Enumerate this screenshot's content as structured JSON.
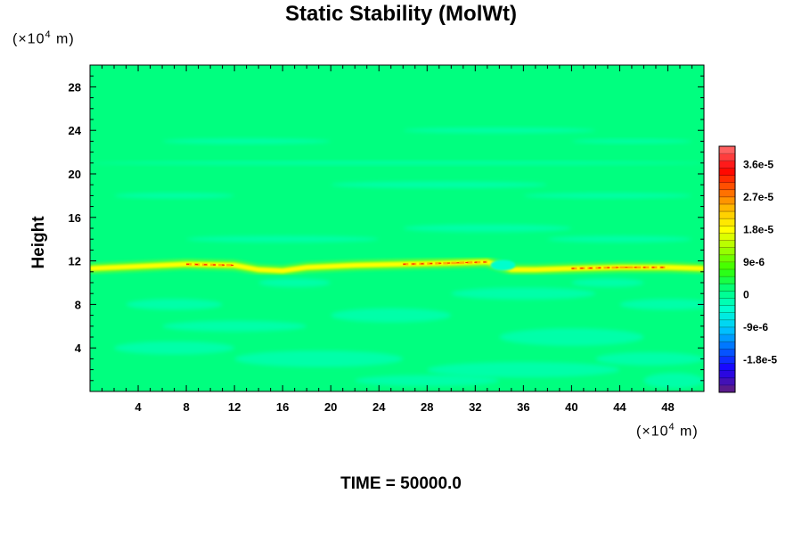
{
  "chart_data": {
    "type": "heatmap",
    "title": "Static Stability (MolWt)",
    "xlabel": "",
    "ylabel": "Height",
    "x_multiplier": {
      "prefix": "(×10",
      "exponent": "4",
      "unit": " m)"
    },
    "y_multiplier": {
      "prefix": "(×10",
      "exponent": "4",
      "unit": " m)"
    },
    "xlim": [
      0,
      51
    ],
    "ylim": [
      0,
      30
    ],
    "x_ticks": [
      "4",
      "8",
      "12",
      "16",
      "20",
      "24",
      "28",
      "32",
      "36",
      "40",
      "44",
      "48"
    ],
    "y_ticks": [
      "4",
      "8",
      "12",
      "16",
      "20",
      "24",
      "28"
    ],
    "colorbar": {
      "range": [
        -2.7e-05,
        4.1e-05
      ],
      "labels": [
        "3.6e-5",
        "2.7e-5",
        "1.8e-5",
        "9e-6",
        "0",
        "-9e-6",
        "-1.8e-5"
      ],
      "colors": [
        "#5a1a8c",
        "#1a00ff",
        "#0066ff",
        "#00c8ff",
        "#00ffd0",
        "#00ff7f",
        "#33ff00",
        "#a0ff00",
        "#ffff00",
        "#ffc000",
        "#ff6000",
        "#ff0000",
        "#ff6060"
      ]
    },
    "field": {
      "background_value": 0,
      "dominant_band": {
        "height": 11.5,
        "max_value": 3e-05
      },
      "negative_patches_min": -9e-06
    },
    "time_label": "TIME = 50000.0"
  },
  "colors": {
    "background": "#00ff7f",
    "band_core": "#ff3000",
    "band_edge": "#ffff00",
    "negative": "#00ffcc"
  }
}
